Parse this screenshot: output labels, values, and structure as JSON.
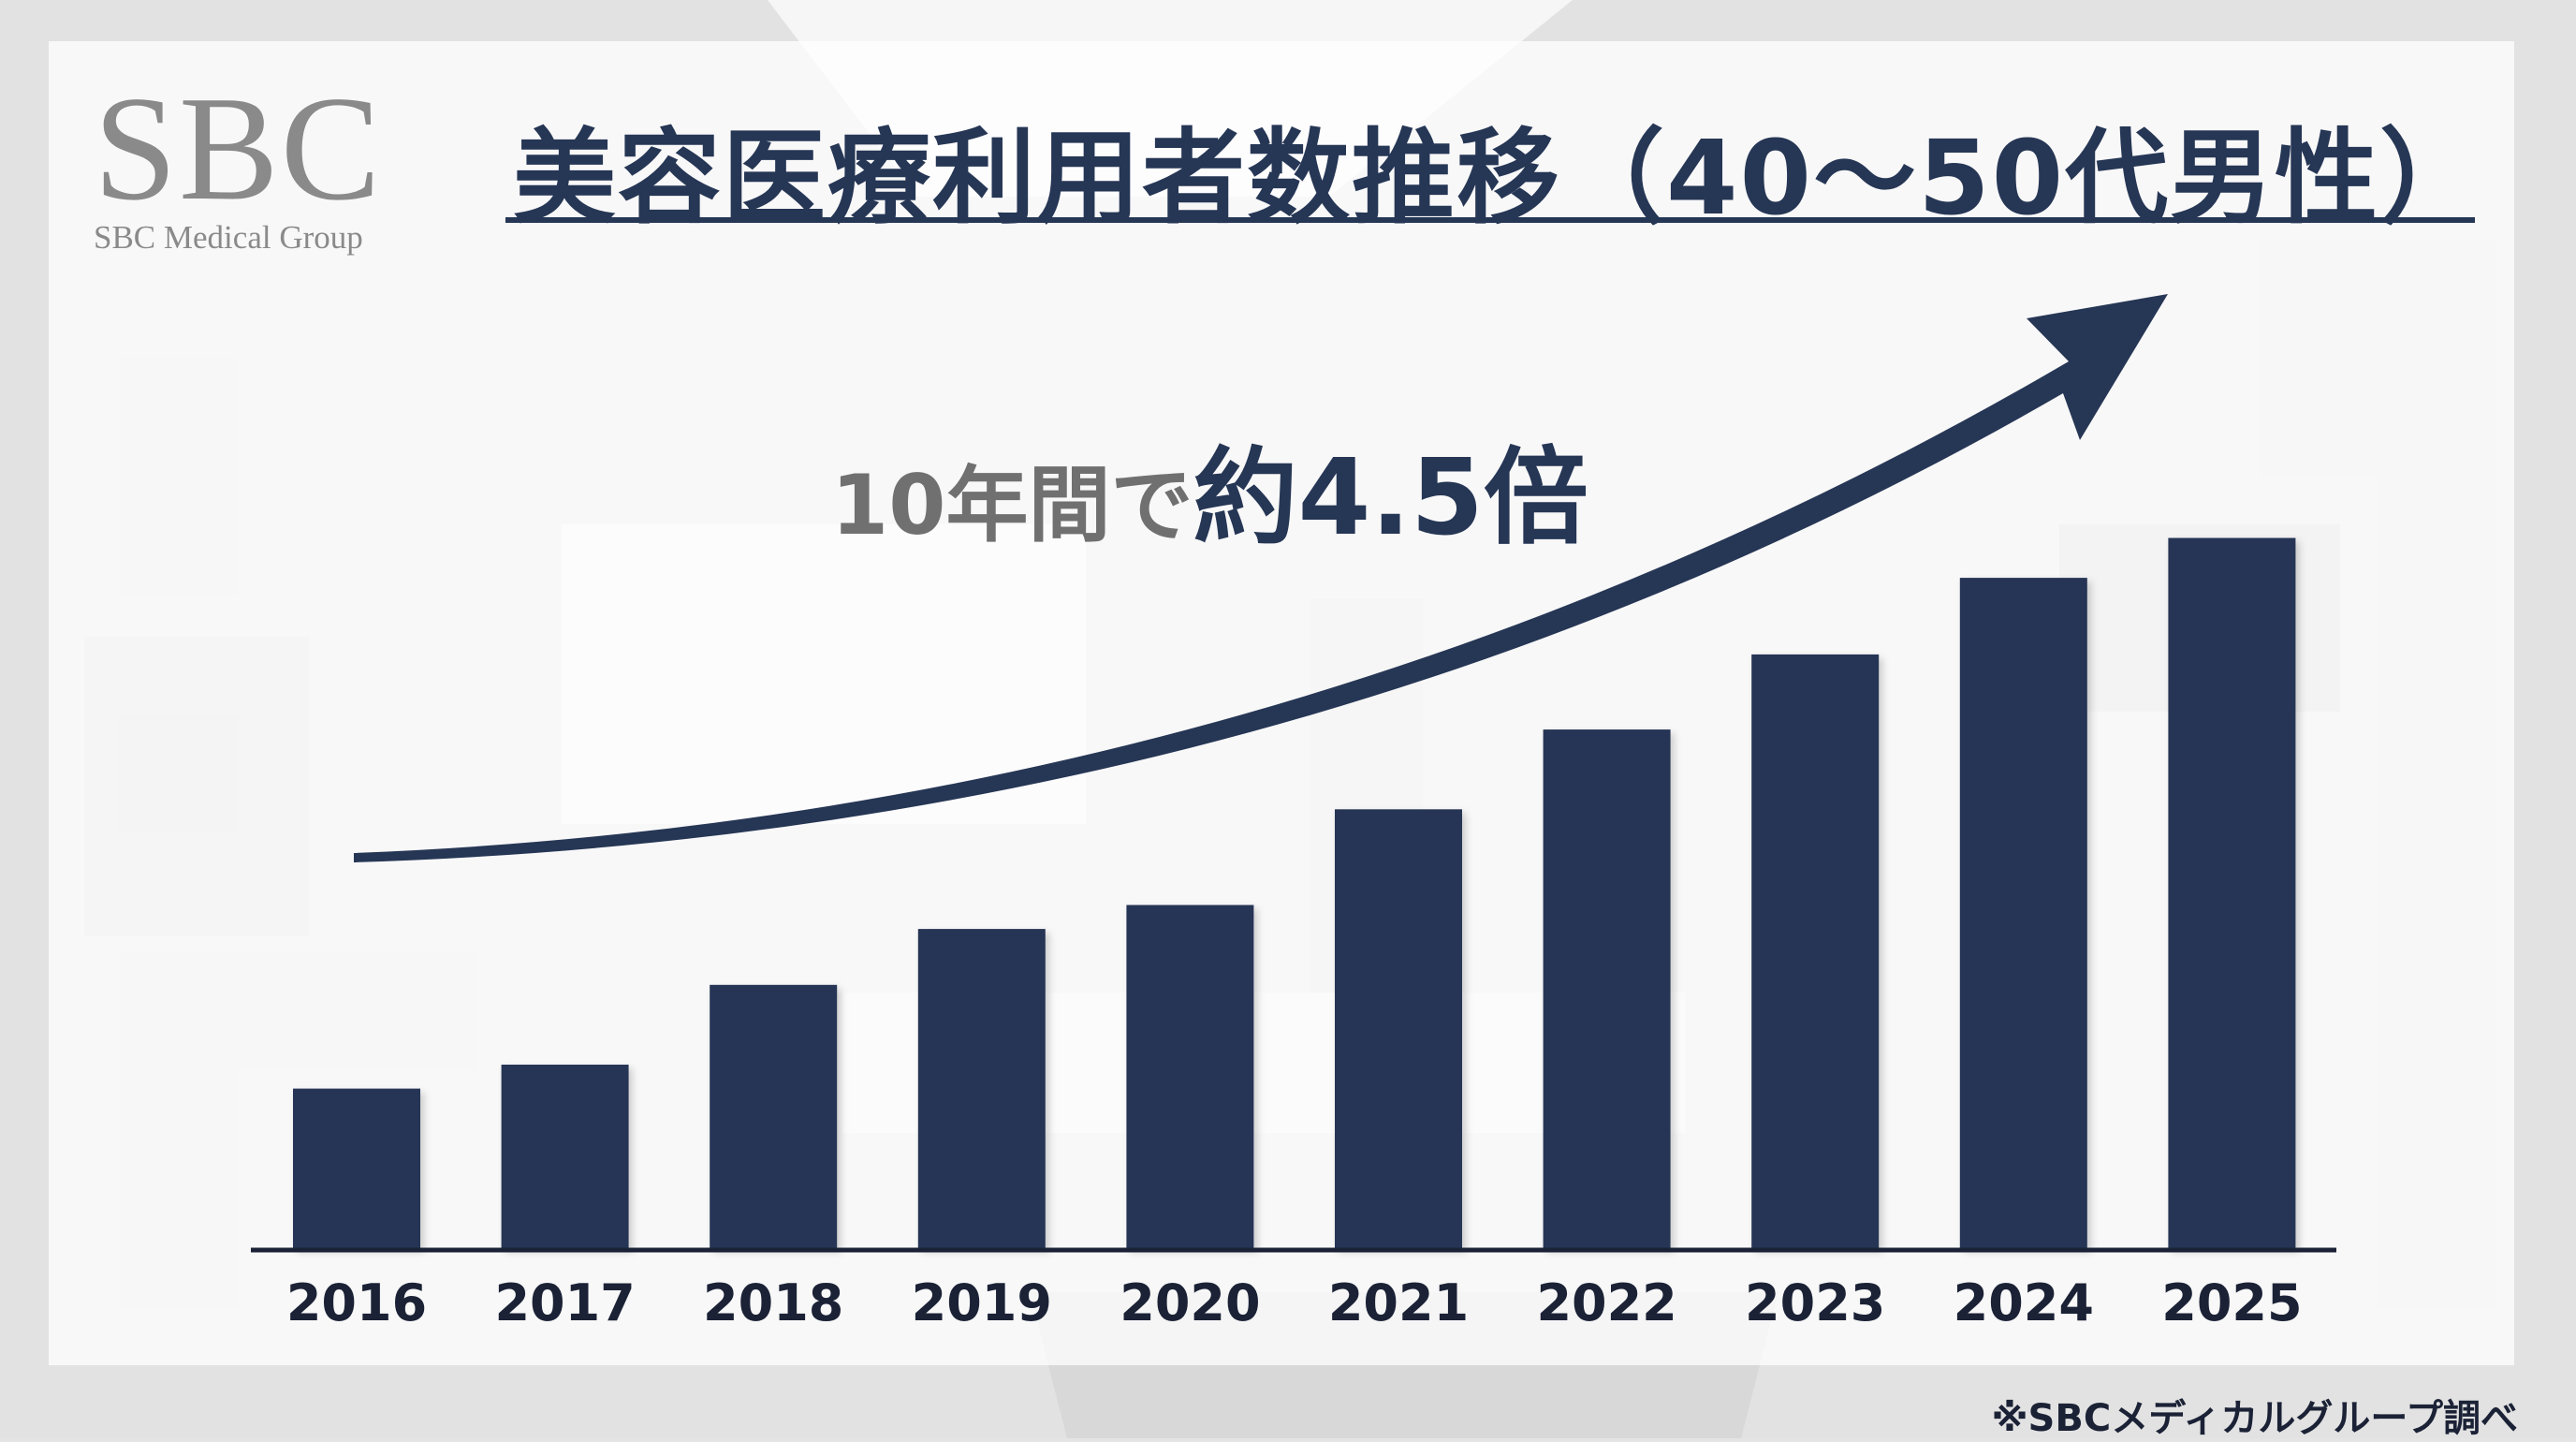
{
  "logo": {
    "mark": "SBC",
    "subtitle": "SBC Medical Group"
  },
  "title": "美容医療利用者数推移（40〜50代男性）",
  "callout": {
    "prefix": "10年間で",
    "highlight": "約4.5倍"
  },
  "footnote": "※SBCメディカルグループ調べ",
  "colors": {
    "bar": "#263655",
    "title": "#263655",
    "callout_prefix": "#707070",
    "axis": "#1b2236"
  },
  "chart_data": {
    "type": "bar",
    "categories": [
      "2016",
      "2017",
      "2018",
      "2019",
      "2020",
      "2021",
      "2022",
      "2023",
      "2024",
      "2025"
    ],
    "values": [
      1.0,
      1.15,
      1.65,
      2.0,
      2.15,
      2.75,
      3.25,
      3.72,
      4.2,
      4.45
    ],
    "ylim": [
      0,
      4.5
    ],
    "grid": false,
    "legend": "none",
    "annotation": "10年間で約4.5倍"
  }
}
